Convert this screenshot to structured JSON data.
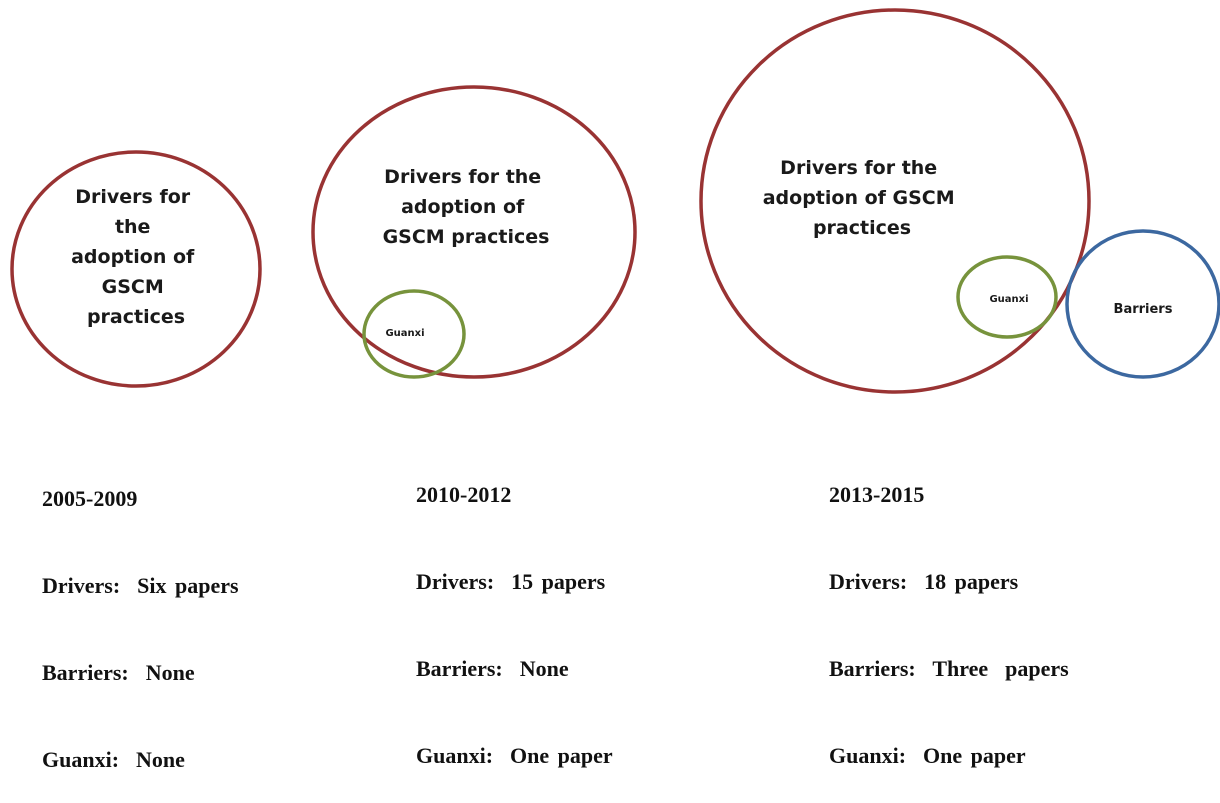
{
  "colors": {
    "drivers_circle": "#993333",
    "guanxi_circle": "#77933c",
    "barriers_circle": "#3c68a0"
  },
  "panels": [
    {
      "drivers_label_lines": [
        "Drivers for",
        "the",
        "adoption of",
        "GSCM",
        "practices"
      ],
      "period": "2005-2009",
      "drivers": "Drivers:  Six papers",
      "barriers": "Barriers:  None",
      "guanxi": "Guanxi:  None"
    },
    {
      "drivers_label_lines": [
        "Drivers for the",
        "adoption of",
        "GSCM  practices"
      ],
      "guanxi_label": "Guanxi",
      "period": "2010-2012",
      "drivers": "Drivers:  15 papers",
      "barriers": "Barriers:  None",
      "guanxi": "Guanxi:  One paper"
    },
    {
      "drivers_label_lines": [
        "Drivers for the",
        "adoption of GSCM",
        "practices"
      ],
      "guanxi_label": "Guanxi",
      "barriers_label": "Barriers",
      "period": "2013-2015",
      "drivers": "Drivers:  18 papers",
      "barriers": "Barriers:  Three  papers",
      "guanxi": "Guanxi:  One paper"
    }
  ]
}
